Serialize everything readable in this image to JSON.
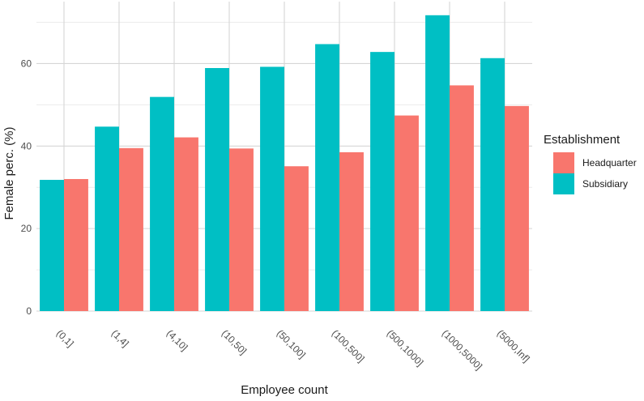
{
  "chart_data": {
    "type": "bar",
    "xlabel": "Employee count",
    "ylabel": "Female perc. (%)",
    "categories": [
      "(0,1]",
      "(1,4]",
      "(4,10]",
      "(10,50]",
      "(50,100]",
      "(100,500]",
      "(500,1000]",
      "(1000,5000]",
      "(5000,Inf]"
    ],
    "series": [
      {
        "name": "Subsidiary",
        "color": "#00BFC4",
        "values": [
          31.8,
          44.7,
          51.9,
          58.9,
          59.2,
          64.7,
          62.8,
          71.7,
          61.3
        ]
      },
      {
        "name": "Headquarter",
        "color": "#F8766D",
        "values": [
          32.0,
          39.5,
          42.1,
          39.4,
          35.1,
          38.5,
          47.4,
          54.7,
          49.7
        ]
      }
    ],
    "yticks": [
      0,
      20,
      40,
      60
    ],
    "ylim": [
      0,
      75
    ],
    "grid": true,
    "legend": {
      "title": "Establishment",
      "position": "right",
      "entries": [
        {
          "label": "Headquarter",
          "color": "#F8766D"
        },
        {
          "label": "Subsidiary",
          "color": "#00BFC4"
        }
      ]
    }
  }
}
